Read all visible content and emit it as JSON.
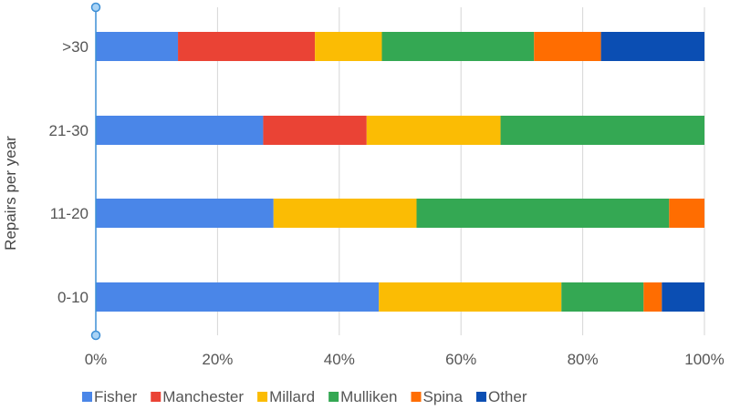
{
  "chart_data": {
    "type": "bar",
    "orientation": "horizontal",
    "stacked": "percent",
    "title": "",
    "xlabel": "",
    "ylabel": "Repairs per year",
    "xlim": [
      0,
      100
    ],
    "x_ticks": [
      "0%",
      "20%",
      "40%",
      "60%",
      "80%",
      "100%"
    ],
    "categories": [
      ">30",
      "21-30",
      "11-20",
      "0-10"
    ],
    "series": [
      {
        "name": "Fisher",
        "color": "#4a86e8",
        "values": [
          13.5,
          27.5,
          29.2,
          46.5
        ]
      },
      {
        "name": "Manchester",
        "color": "#ea4335",
        "values": [
          22.5,
          17.0,
          0,
          0
        ]
      },
      {
        "name": "Millard",
        "color": "#fbbc04",
        "values": [
          11.0,
          22.0,
          23.5,
          30.0
        ]
      },
      {
        "name": "Mulliken",
        "color": "#34a853",
        "values": [
          25.0,
          33.5,
          41.5,
          13.5
        ]
      },
      {
        "name": "Spina",
        "color": "#ff6d01",
        "values": [
          11.0,
          0,
          5.8,
          3.0
        ]
      },
      {
        "name": "Other",
        "color": "#0b4eb3",
        "values": [
          17.0,
          0,
          0,
          7.0
        ]
      }
    ],
    "grid": true,
    "legend_position": "bottom"
  }
}
